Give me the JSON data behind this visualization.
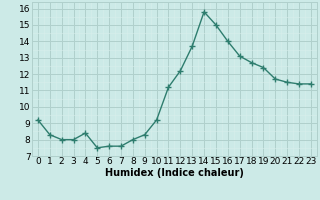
{
  "x": [
    0,
    1,
    2,
    3,
    4,
    5,
    6,
    7,
    8,
    9,
    10,
    11,
    12,
    13,
    14,
    15,
    16,
    17,
    18,
    19,
    20,
    21,
    22,
    23
  ],
  "y": [
    9.2,
    8.3,
    8.0,
    8.0,
    8.4,
    7.5,
    7.6,
    7.6,
    8.0,
    8.3,
    9.2,
    11.2,
    12.2,
    13.7,
    15.8,
    15.0,
    14.0,
    13.1,
    12.7,
    12.4,
    11.7,
    11.5,
    11.4,
    11.4
  ],
  "line_color": "#2e7d6e",
  "marker": "+",
  "marker_size": 4,
  "marker_lw": 1.0,
  "line_width": 1.0,
  "bg_color": "#cceae7",
  "grid_major_color": "#b0d0cc",
  "grid_minor_color": "#d8eeeb",
  "xlabel": "Humidex (Indice chaleur)",
  "xlabel_fontsize": 7,
  "xlabel_fontweight": "bold",
  "ylabel_ticks": [
    7,
    8,
    9,
    10,
    11,
    12,
    13,
    14,
    15,
    16
  ],
  "xlim": [
    -0.5,
    23.5
  ],
  "ylim": [
    7,
    16.4
  ],
  "tick_fontsize": 6.5
}
